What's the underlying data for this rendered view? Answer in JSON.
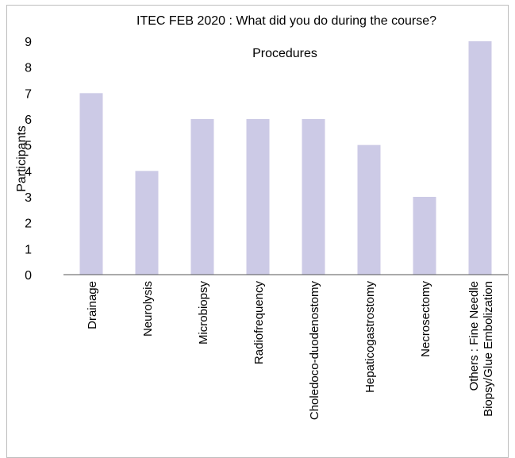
{
  "chart_data": {
    "type": "bar",
    "title": "ITEC FEB 2020 : What did you do during the course?",
    "subtitle": "Procedures",
    "xlabel": "",
    "ylabel": "Participants",
    "ylim": [
      0,
      9
    ],
    "yticks": [
      "0",
      "1",
      "2",
      "3",
      "4",
      "5",
      "6",
      "7",
      "8",
      "9"
    ],
    "grid": false,
    "legend": "none",
    "bar_color": "#cccae6",
    "categories": [
      [
        "Drainage"
      ],
      [
        "Neurolysis"
      ],
      [
        "Microbiopsy"
      ],
      [
        "Radiofrequency"
      ],
      [
        "Choledoco-duodenostomy"
      ],
      [
        "Hepaticogastrostomy"
      ],
      [
        "Necrosectomy"
      ],
      [
        "Others : Fine Needle",
        "Biopsy/Glue Embolization"
      ]
    ],
    "values": [
      7,
      4,
      6,
      6,
      6,
      5,
      3,
      9
    ]
  }
}
